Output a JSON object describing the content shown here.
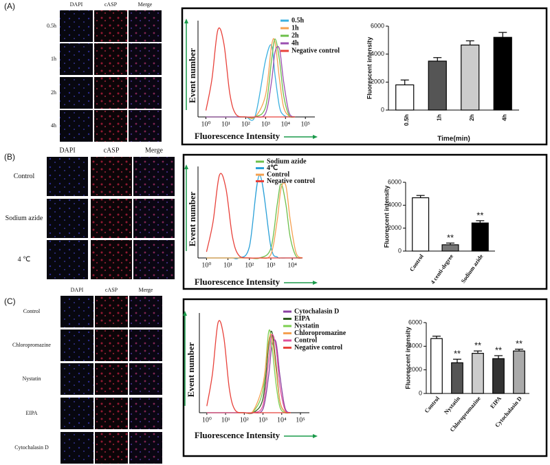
{
  "panels": [
    "(A)",
    "(B)",
    "(C)"
  ],
  "micrographs": [
    {
      "columns": [
        "DAPI",
        "cASP",
        "Merge"
      ],
      "rows": [
        "0.5h",
        "1h",
        "2h",
        "4h"
      ]
    },
    {
      "columns": [
        "DAPI",
        "cASP",
        "Merge"
      ],
      "rows": [
        "Control",
        "Sodium  azide",
        "4 ℃"
      ]
    },
    {
      "columns": [
        "DAPI",
        "cASP",
        "Merge"
      ],
      "rows": [
        "Control",
        "Chloropromazine",
        "Nystatin",
        "EIPA",
        "Cytochalasin D"
      ]
    }
  ],
  "chart_data": [
    {
      "type": "line",
      "log_x": true,
      "x": [
        1,
        2,
        4,
        8,
        16,
        32,
        100,
        300,
        1000,
        2000,
        3000,
        5000,
        8000,
        15000,
        30000
      ],
      "xlim": [
        0.4,
        300000
      ],
      "xticks": [
        {
          "value": 1,
          "label": "10⁰"
        },
        {
          "value": 10,
          "label": "10¹"
        },
        {
          "value": 100,
          "label": "10²"
        },
        {
          "value": 1000,
          "label": "10³"
        },
        {
          "value": 10000,
          "label": "10⁴"
        },
        {
          "value": 100000,
          "label": "10⁵"
        }
      ],
      "ylim": [
        0,
        105
      ],
      "x_label": "Fluorescence Intensity",
      "y_label": "Event number",
      "series": [
        {
          "name": "0.5h",
          "color": "#3ab0e0",
          "values": [
            0,
            0,
            0,
            0,
            0,
            0,
            0,
            1,
            62,
            78,
            45,
            11,
            2,
            0,
            0
          ]
        },
        {
          "name": "1h",
          "color": "#f5a050",
          "values": [
            0,
            0,
            0,
            0,
            0,
            0,
            0,
            0,
            24,
            78,
            81,
            41,
            11,
            1,
            0
          ]
        },
        {
          "name": "2h",
          "color": "#6cbf4a",
          "values": [
            0,
            0,
            0,
            0,
            0,
            0,
            0,
            0,
            11,
            62,
            85,
            62,
            24,
            2,
            0
          ]
        },
        {
          "name": "4h",
          "color": "#9b4fb0",
          "values": [
            0,
            0,
            0,
            0,
            0,
            0,
            0,
            0,
            4,
            39,
            71,
            74,
            39,
            5,
            0
          ]
        },
        {
          "name": "Negative control",
          "color": "#e8413a",
          "values": [
            7,
            41,
            95,
            80,
            25,
            3,
            0,
            0,
            0,
            0,
            0,
            0,
            0,
            0,
            0
          ]
        }
      ]
    },
    {
      "type": "bar",
      "categories": [
        "0.5h",
        "1h",
        "2h",
        "4h"
      ],
      "values": [
        1800,
        3500,
        4650,
        5200
      ],
      "errors": [
        350,
        250,
        300,
        350
      ],
      "colors": [
        "#ffffff",
        "#555555",
        "#cccccc",
        "#000000"
      ],
      "ylim": [
        0,
        6000
      ],
      "yticks": [
        0,
        2000,
        4000,
        6000
      ],
      "x_label": "Time(min)",
      "y_label": "Fluorescent intensity"
    },
    {
      "type": "line",
      "log_x": true,
      "x": [
        1,
        2,
        4,
        8,
        16,
        32,
        100,
        300,
        1000,
        2000,
        3000,
        5000,
        8000,
        15000,
        30000
      ],
      "xlim": [
        0.4,
        30000
      ],
      "xticks": [
        {
          "value": 1,
          "label": "10⁰"
        },
        {
          "value": 10,
          "label": "10¹"
        },
        {
          "value": 100,
          "label": "10²"
        },
        {
          "value": 1000,
          "label": "10³"
        },
        {
          "value": 10000,
          "label": "10⁴"
        }
      ],
      "ylim": [
        0,
        105
      ],
      "x_label": "Fluorescence Intensity",
      "y_label": "Event number",
      "series": [
        {
          "name": "Sodium azide",
          "color": "#6cbf4a",
          "values": [
            0,
            0,
            0,
            0,
            0,
            0,
            0,
            0,
            11,
            62,
            85,
            62,
            24,
            2,
            0
          ]
        },
        {
          "name": "4℃",
          "color": "#2aa0d8",
          "values": [
            0,
            0,
            0,
            0,
            0,
            0,
            13,
            95,
            13,
            1,
            0,
            0,
            0,
            0,
            0
          ]
        },
        {
          "name": "Control",
          "color": "#f5a050",
          "values": [
            0,
            0,
            0,
            0,
            0,
            0,
            0,
            0,
            4,
            44,
            80,
            83,
            44,
            6,
            0
          ]
        },
        {
          "name": "Negative control",
          "color": "#e8413a",
          "values": [
            7,
            41,
            95,
            80,
            25,
            3,
            0,
            0,
            0,
            0,
            0,
            0,
            0,
            0,
            0
          ]
        }
      ]
    },
    {
      "type": "bar",
      "categories": [
        "Control",
        "4 centi-degree",
        "Sodium azide"
      ],
      "values": [
        4650,
        550,
        2450
      ],
      "errors": [
        200,
        150,
        200
      ],
      "colors": [
        "#ffffff",
        "#777777",
        "#000000"
      ],
      "significance": [
        null,
        "**",
        "**"
      ],
      "ylim": [
        0,
        6000
      ],
      "yticks": [
        0,
        2000,
        4000,
        6000
      ],
      "y_label": "Fluorescent intensity"
    },
    {
      "type": "line",
      "log_x": true,
      "x": [
        1,
        2,
        4,
        8,
        16,
        32,
        100,
        300,
        1000,
        2000,
        3000,
        5000,
        8000,
        15000,
        30000
      ],
      "xlim": [
        0.4,
        300000
      ],
      "xticks": [
        {
          "value": 1,
          "label": "10⁰"
        },
        {
          "value": 10,
          "label": "10¹"
        },
        {
          "value": 100,
          "label": "10²"
        },
        {
          "value": 1000,
          "label": "10³"
        },
        {
          "value": 10000,
          "label": "10⁴"
        },
        {
          "value": 100000,
          "label": "10⁵"
        }
      ],
      "ylim": [
        0,
        105
      ],
      "x_label": "Fluorescence Intensity",
      "y_label": "Event number",
      "series": [
        {
          "name": "Cytochalasin D",
          "color": "#8a3fa0",
          "values": [
            0,
            0,
            0,
            0,
            0,
            0,
            0,
            0,
            4,
            39,
            71,
            74,
            39,
            5,
            0
          ]
        },
        {
          "name": "EIPA",
          "color": "#2e5e1e",
          "values": [
            0,
            0,
            0,
            0,
            0,
            0,
            0,
            0,
            15,
            70,
            85,
            50,
            12,
            1,
            0
          ]
        },
        {
          "name": "Nystatin",
          "color": "#7ccf50",
          "values": [
            0,
            0,
            0,
            0,
            0,
            0,
            0,
            1,
            24,
            85,
            70,
            30,
            6,
            0,
            0
          ]
        },
        {
          "name": "Chloropromazine",
          "color": "#f5a050",
          "values": [
            0,
            0,
            0,
            0,
            0,
            0,
            0,
            2,
            30,
            75,
            80,
            45,
            12,
            1,
            0
          ]
        },
        {
          "name": "Control",
          "color": "#e0509a",
          "values": [
            0,
            0,
            0,
            0,
            0,
            0,
            0,
            0,
            8,
            55,
            82,
            68,
            28,
            3,
            0
          ]
        },
        {
          "name": "Negative control",
          "color": "#e8413a",
          "values": [
            7,
            41,
            95,
            80,
            25,
            3,
            0,
            0,
            0,
            0,
            0,
            0,
            0,
            0,
            0
          ]
        }
      ]
    },
    {
      "type": "bar",
      "categories": [
        "Control",
        "Nystatin",
        "Chloropromazine",
        "EIPA",
        "Cytochalasin D"
      ],
      "values": [
        4650,
        2600,
        3400,
        2950,
        3600
      ],
      "errors": [
        200,
        300,
        200,
        250,
        150
      ],
      "colors": [
        "#ffffff",
        "#555555",
        "#cccccc",
        "#333333",
        "#aaaaaa"
      ],
      "significance": [
        null,
        "**",
        "**",
        "**",
        "**"
      ],
      "ylim": [
        0,
        6000
      ],
      "yticks": [
        0,
        2000,
        4000,
        6000
      ],
      "y_label": "Fluorescent intensity"
    }
  ]
}
